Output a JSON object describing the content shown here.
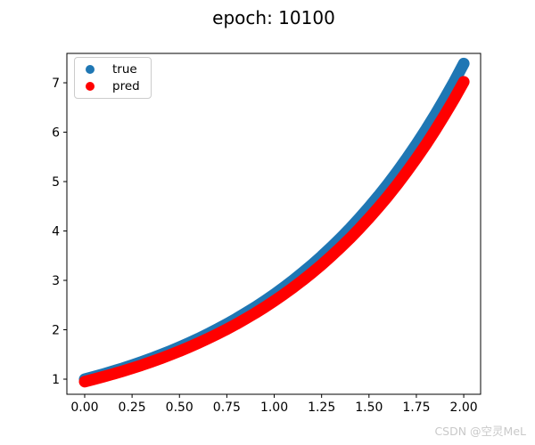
{
  "chart_data": {
    "type": "scatter",
    "title": "epoch: 10100",
    "xlabel": "",
    "ylabel": "",
    "grid": false,
    "xlim": [
      -0.094,
      2.089
    ],
    "ylim": [
      0.694,
      7.595
    ],
    "legend_position": "upper left",
    "xticks": {
      "values": [
        0.0,
        0.25,
        0.5,
        0.75,
        1.0,
        1.25,
        1.5,
        1.75,
        2.0
      ],
      "labels": [
        "0.00",
        "0.25",
        "0.50",
        "0.75",
        "1.00",
        "1.25",
        "1.50",
        "1.75",
        "2.00"
      ]
    },
    "yticks": {
      "values": [
        1,
        2,
        3,
        4,
        5,
        6,
        7
      ],
      "labels": [
        "1",
        "2",
        "3",
        "4",
        "5",
        "6",
        "7"
      ]
    },
    "x": [
      0,
      0.05,
      0.1,
      0.15,
      0.2,
      0.25,
      0.3,
      0.35,
      0.4,
      0.45,
      0.5,
      0.55,
      0.6,
      0.65,
      0.7,
      0.75,
      0.8,
      0.85,
      0.9,
      0.95,
      1,
      1.05,
      1.1,
      1.15,
      1.2,
      1.25,
      1.3,
      1.35,
      1.4,
      1.45,
      1.5,
      1.55,
      1.6,
      1.65,
      1.7,
      1.75,
      1.8,
      1.85,
      1.9,
      1.95,
      2
    ],
    "series": [
      {
        "name": "true",
        "color": "#1f77b4",
        "marker": "circle",
        "values": [
          1.0,
          1.051,
          1.105,
          1.162,
          1.221,
          1.284,
          1.35,
          1.419,
          1.492,
          1.568,
          1.649,
          1.733,
          1.822,
          1.916,
          2.014,
          2.117,
          2.226,
          2.34,
          2.46,
          2.586,
          2.718,
          2.858,
          3.004,
          3.158,
          3.32,
          3.49,
          3.669,
          3.857,
          4.055,
          4.263,
          4.482,
          4.711,
          4.953,
          5.207,
          5.474,
          5.755,
          6.05,
          6.36,
          6.686,
          7.029,
          7.389
        ]
      },
      {
        "name": "pred",
        "color": "#ff0000",
        "marker": "circle",
        "values": [
          0.95,
          0.999,
          1.05,
          1.104,
          1.16,
          1.22,
          1.282,
          1.348,
          1.417,
          1.49,
          1.566,
          1.647,
          1.731,
          1.82,
          1.913,
          2.011,
          2.114,
          2.223,
          2.337,
          2.456,
          2.582,
          2.715,
          2.854,
          3.0,
          3.154,
          3.316,
          3.486,
          3.665,
          3.852,
          4.05,
          4.258,
          4.476,
          4.705,
          4.947,
          5.2,
          5.467,
          5.747,
          6.042,
          6.352,
          6.677,
          7.02
        ]
      }
    ]
  },
  "watermark": {
    "text": "CSDN @空灵MeL",
    "color": "#c9c9c9"
  }
}
